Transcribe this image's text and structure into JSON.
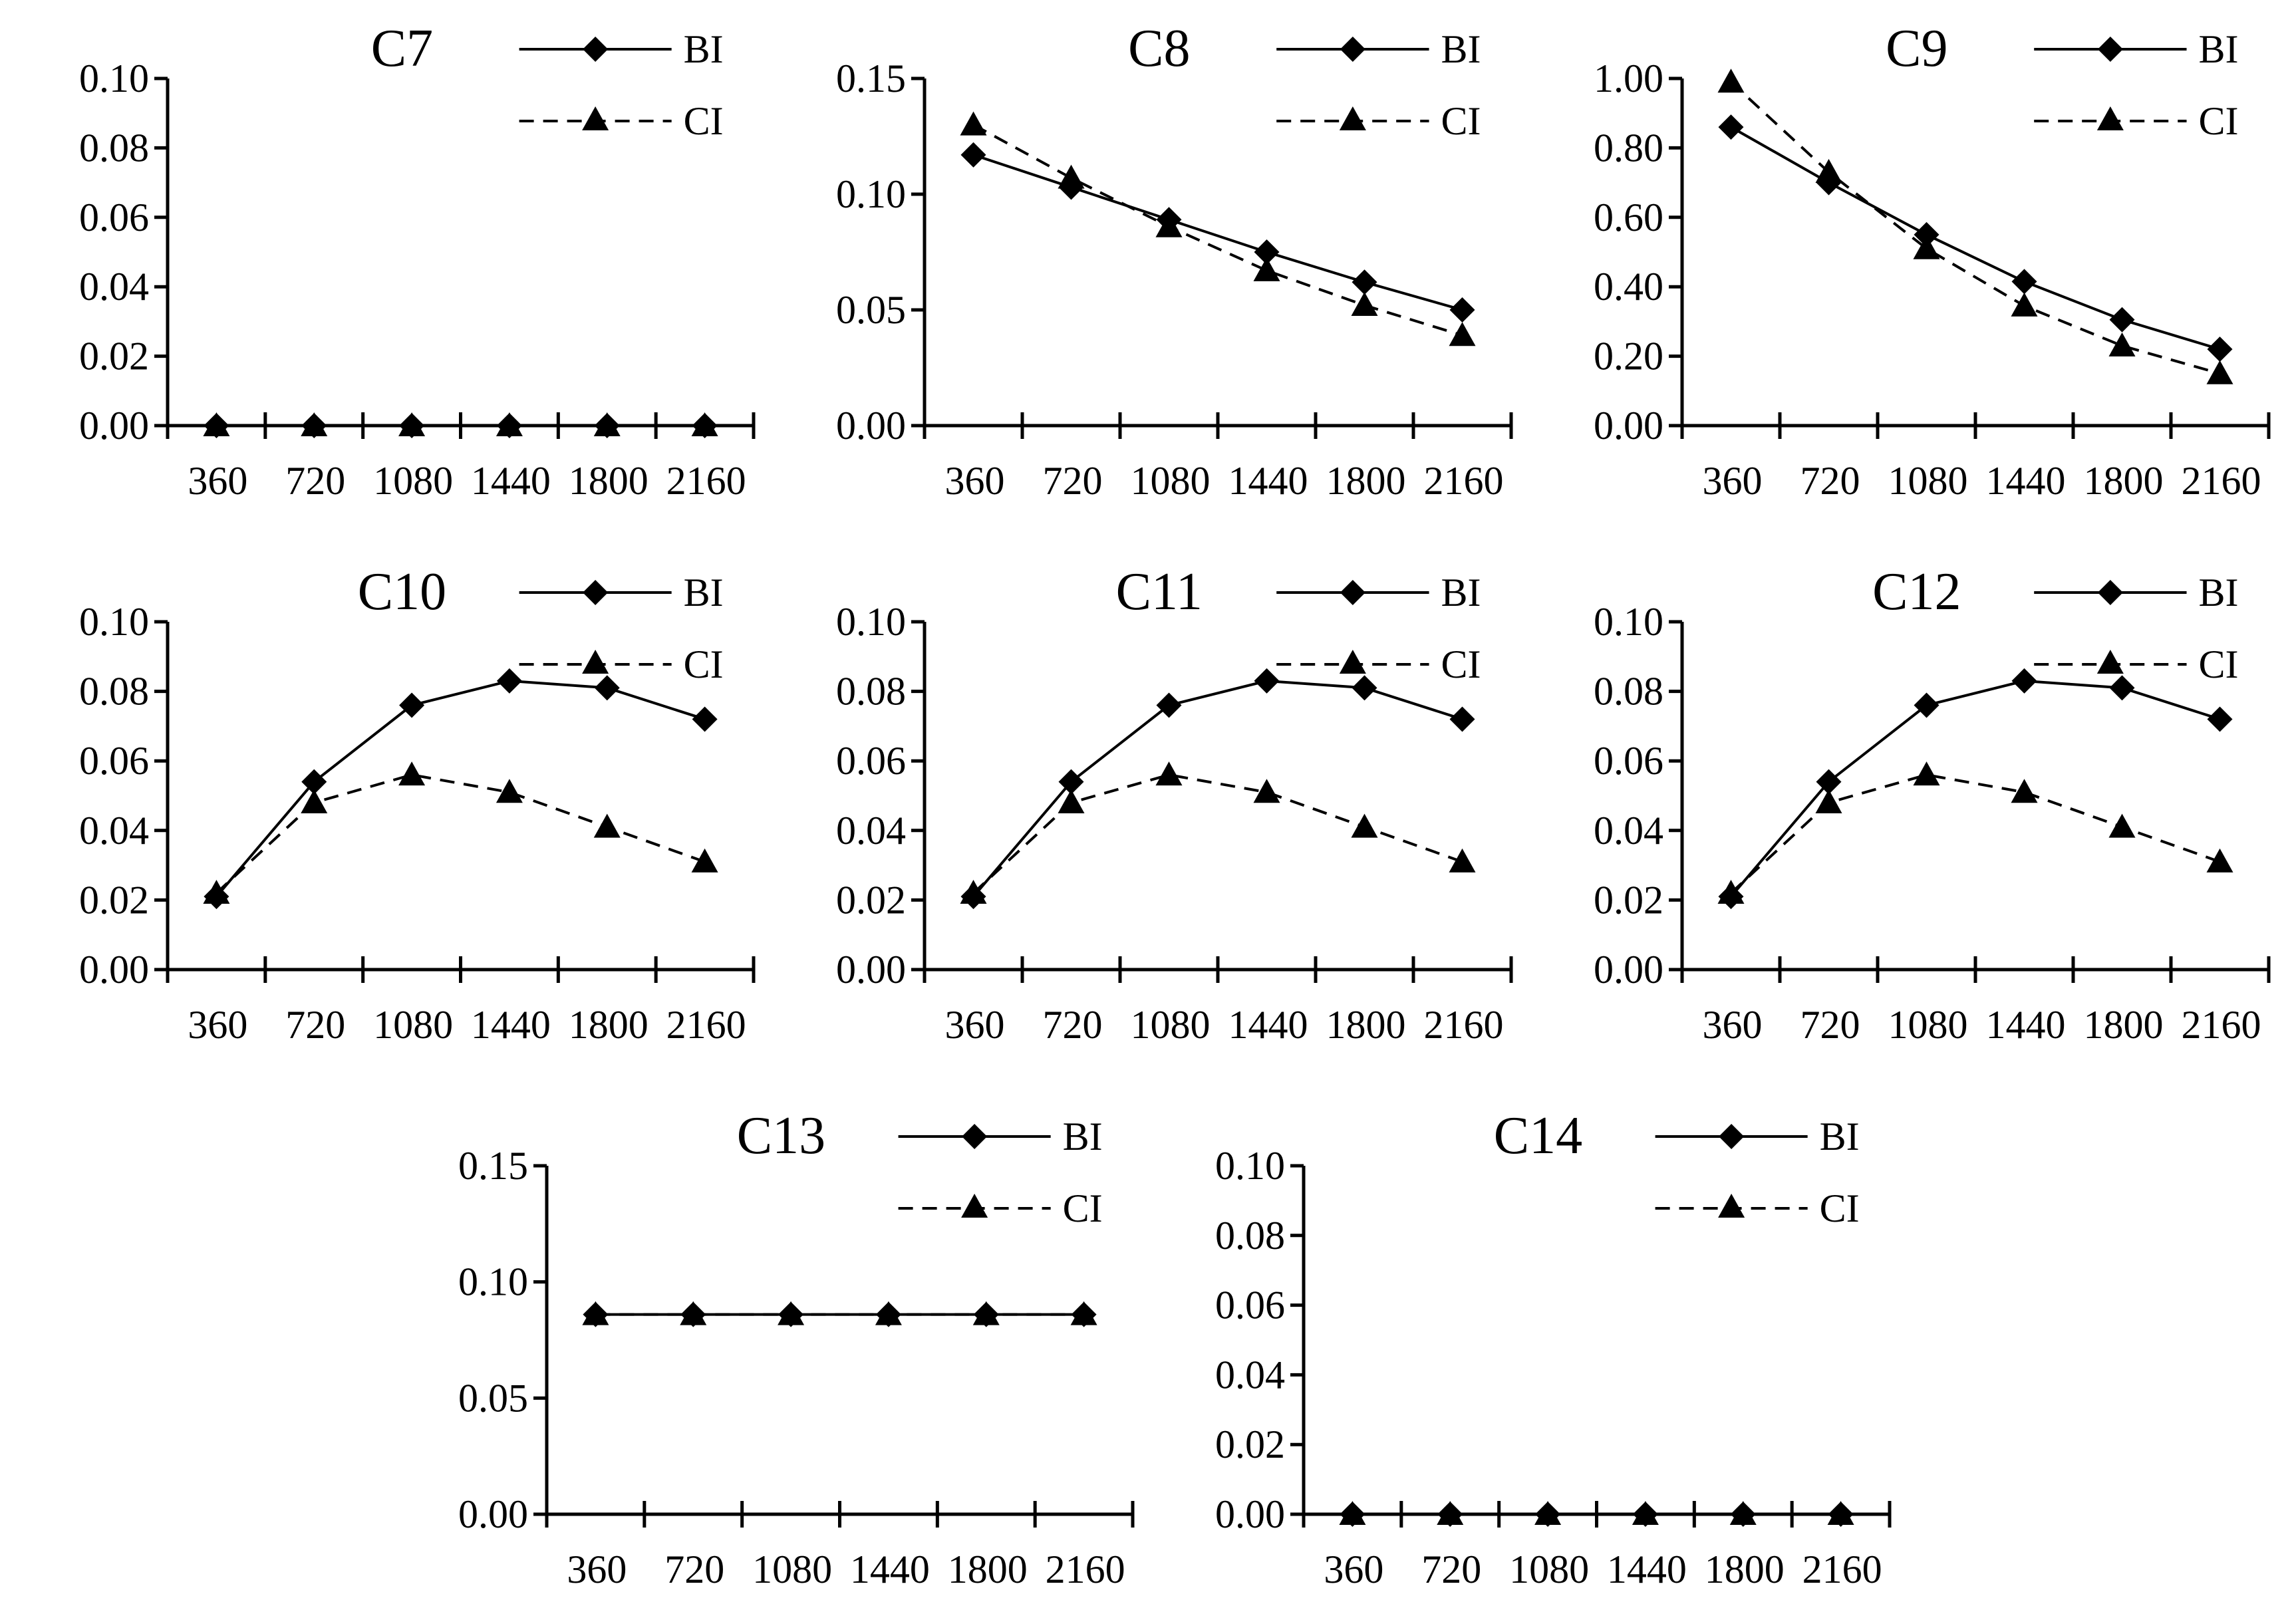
{
  "chart_data": [
    {
      "type": "line",
      "title": "C7",
      "categories": [
        "360",
        "720",
        "1080",
        "1440",
        "1800",
        "2160"
      ],
      "ylim": [
        0,
        0.1
      ],
      "yticks": [
        "0.00",
        "0.02",
        "0.04",
        "0.06",
        "0.08",
        "0.10"
      ],
      "legend": "top-right",
      "series": [
        {
          "name": "BI",
          "marker": "diamond",
          "dash": "solid",
          "values": [
            0,
            0,
            0,
            0,
            0,
            0
          ]
        },
        {
          "name": "CI",
          "marker": "triangle",
          "dash": "dashed",
          "values": [
            0,
            0,
            0,
            0,
            0,
            0
          ]
        }
      ]
    },
    {
      "type": "line",
      "title": "C8",
      "categories": [
        "360",
        "720",
        "1080",
        "1440",
        "1800",
        "2160"
      ],
      "ylim": [
        0,
        0.15
      ],
      "yticks": [
        "0.00",
        "0.05",
        "0.10",
        "0.15"
      ],
      "legend": "top-right",
      "series": [
        {
          "name": "BI",
          "marker": "diamond",
          "dash": "solid",
          "values": [
            0.117,
            0.103,
            0.089,
            0.075,
            0.062,
            0.05
          ]
        },
        {
          "name": "CI",
          "marker": "triangle",
          "dash": "dashed",
          "values": [
            0.13,
            0.107,
            0.086,
            0.067,
            0.052,
            0.039
          ]
        }
      ]
    },
    {
      "type": "line",
      "title": "C9",
      "categories": [
        "360",
        "720",
        "1080",
        "1440",
        "1800",
        "2160"
      ],
      "ylim": [
        0,
        1.0
      ],
      "yticks": [
        "0.00",
        "0.20",
        "0.40",
        "0.60",
        "0.80",
        "1.00"
      ],
      "legend": "top-right",
      "series": [
        {
          "name": "BI",
          "marker": "diamond",
          "dash": "solid",
          "values": [
            0.86,
            0.7,
            0.55,
            0.415,
            0.305,
            0.22
          ]
        },
        {
          "name": "CI",
          "marker": "triangle",
          "dash": "dashed",
          "values": [
            0.99,
            0.73,
            0.51,
            0.345,
            0.23,
            0.15
          ]
        }
      ]
    },
    {
      "type": "line",
      "title": "C10",
      "categories": [
        "360",
        "720",
        "1080",
        "1440",
        "1800",
        "2160"
      ],
      "ylim": [
        0,
        0.1
      ],
      "yticks": [
        "0.00",
        "0.02",
        "0.04",
        "0.06",
        "0.08",
        "0.10"
      ],
      "legend": "top-right",
      "series": [
        {
          "name": "BI",
          "marker": "diamond",
          "dash": "solid",
          "values": [
            0.021,
            0.054,
            0.076,
            0.083,
            0.081,
            0.072
          ]
        },
        {
          "name": "CI",
          "marker": "triangle",
          "dash": "dashed",
          "values": [
            0.022,
            0.048,
            0.056,
            0.051,
            0.041,
            0.031
          ]
        }
      ]
    },
    {
      "type": "line",
      "title": "C11",
      "categories": [
        "360",
        "720",
        "1080",
        "1440",
        "1800",
        "2160"
      ],
      "ylim": [
        0,
        0.1
      ],
      "yticks": [
        "0.00",
        "0.02",
        "0.04",
        "0.06",
        "0.08",
        "0.10"
      ],
      "legend": "top-right",
      "series": [
        {
          "name": "BI",
          "marker": "diamond",
          "dash": "solid",
          "values": [
            0.021,
            0.054,
            0.076,
            0.083,
            0.081,
            0.072
          ]
        },
        {
          "name": "CI",
          "marker": "triangle",
          "dash": "dashed",
          "values": [
            0.022,
            0.048,
            0.056,
            0.051,
            0.041,
            0.031
          ]
        }
      ]
    },
    {
      "type": "line",
      "title": "C12",
      "categories": [
        "360",
        "720",
        "1080",
        "1440",
        "1800",
        "2160"
      ],
      "ylim": [
        0,
        0.1
      ],
      "yticks": [
        "0.00",
        "0.02",
        "0.04",
        "0.06",
        "0.08",
        "0.10"
      ],
      "legend": "top-right",
      "series": [
        {
          "name": "BI",
          "marker": "diamond",
          "dash": "solid",
          "values": [
            0.021,
            0.054,
            0.076,
            0.083,
            0.081,
            0.072
          ]
        },
        {
          "name": "CI",
          "marker": "triangle",
          "dash": "dashed",
          "values": [
            0.022,
            0.048,
            0.056,
            0.051,
            0.041,
            0.031
          ]
        }
      ]
    },
    {
      "type": "line",
      "title": "C13",
      "categories": [
        "360",
        "720",
        "1080",
        "1440",
        "1800",
        "2160"
      ],
      "ylim": [
        0,
        0.15
      ],
      "yticks": [
        "0.00",
        "0.05",
        "0.10",
        "0.15"
      ],
      "legend": "top-right",
      "series": [
        {
          "name": "BI",
          "marker": "diamond",
          "dash": "solid",
          "values": [
            0.086,
            0.086,
            0.086,
            0.086,
            0.086,
            0.086
          ]
        },
        {
          "name": "CI",
          "marker": "triangle",
          "dash": "dashed",
          "values": [
            0.086,
            0.086,
            0.086,
            0.086,
            0.086,
            0.086
          ]
        }
      ]
    },
    {
      "type": "line",
      "title": "C14",
      "categories": [
        "360",
        "720",
        "1080",
        "1440",
        "1800",
        "2160"
      ],
      "ylim": [
        0,
        0.1
      ],
      "yticks": [
        "0.00",
        "0.02",
        "0.04",
        "0.06",
        "0.08",
        "0.10"
      ],
      "legend": "top-right",
      "series": [
        {
          "name": "BI",
          "marker": "diamond",
          "dash": "solid",
          "values": [
            0,
            0,
            0,
            0,
            0,
            0
          ]
        },
        {
          "name": "CI",
          "marker": "triangle",
          "dash": "dashed",
          "values": [
            0,
            0,
            0,
            0,
            0,
            0
          ]
        }
      ]
    }
  ]
}
